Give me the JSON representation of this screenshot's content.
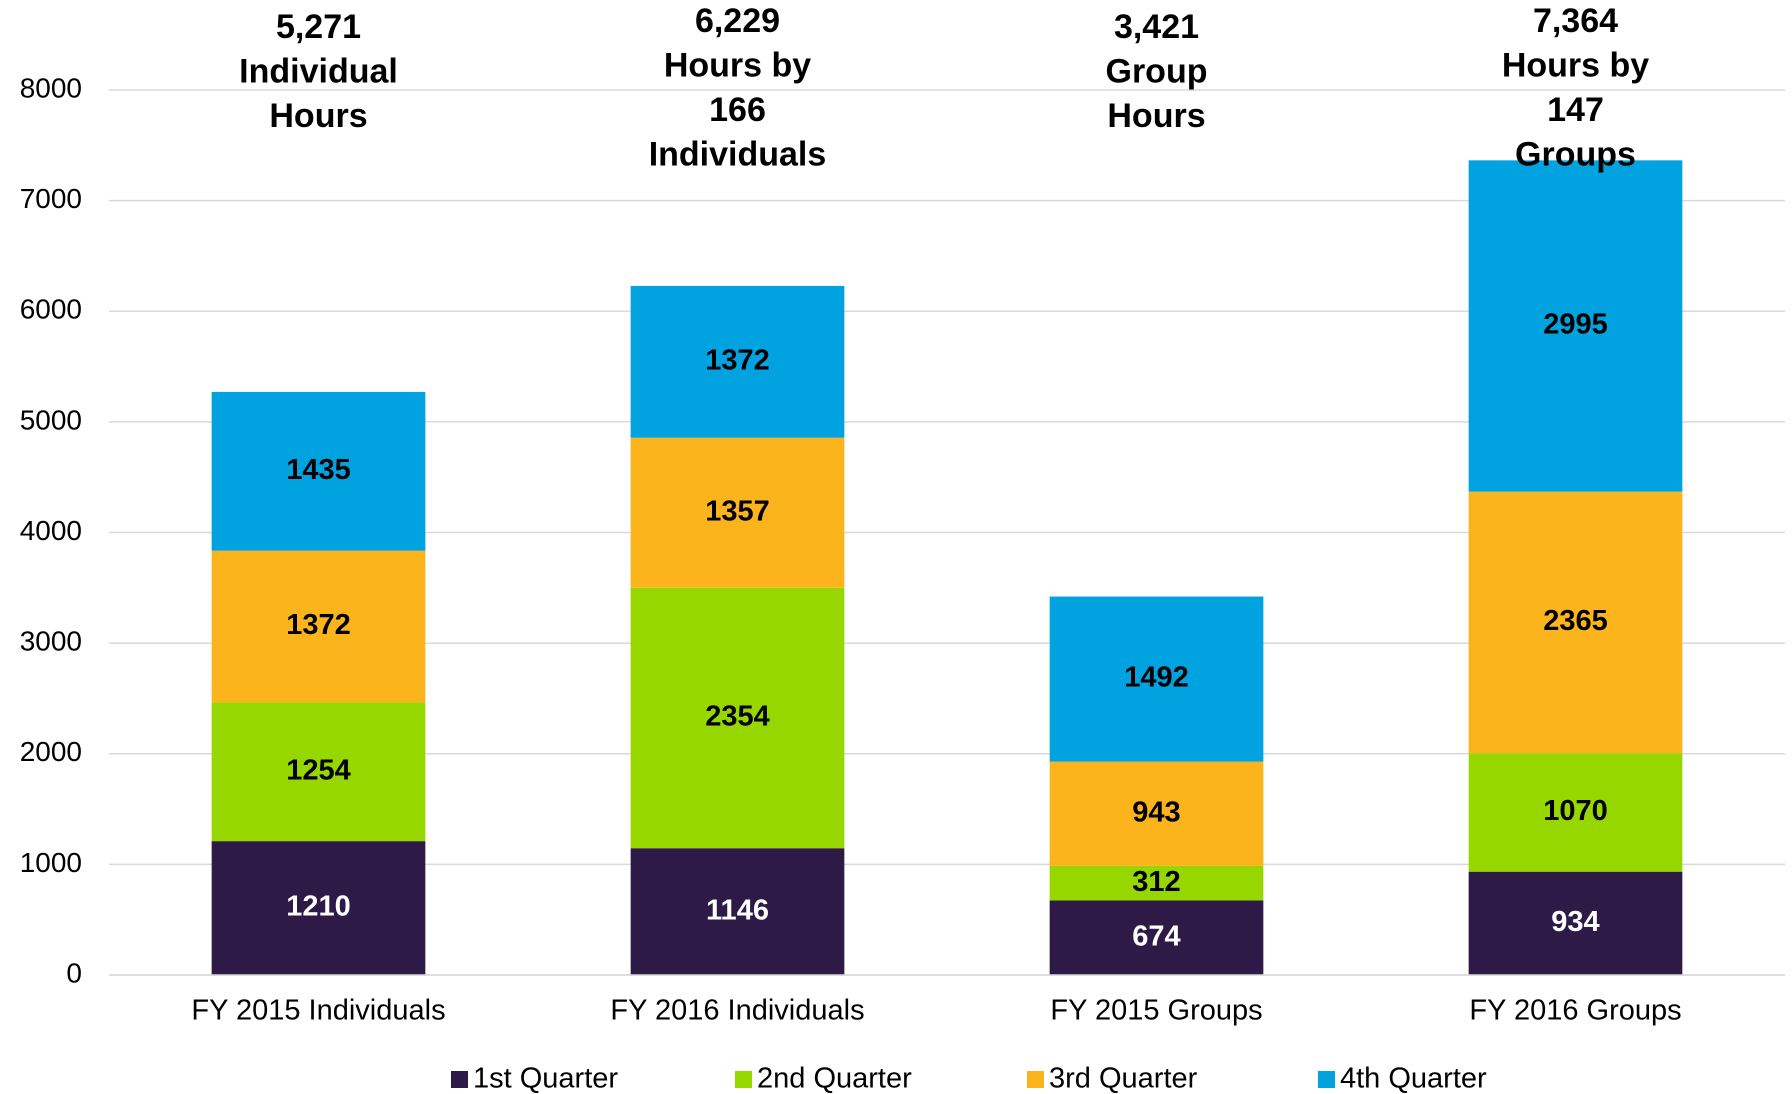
{
  "chart_data": {
    "type": "stacked_bar",
    "categories": [
      "FY 2015 Individuals",
      "FY 2016 Individuals",
      "FY 2015 Groups",
      "FY 2016 Groups"
    ],
    "series": [
      {
        "name": "1st Quarter",
        "color": "#2e1a47",
        "values": [
          1210,
          1146,
          674,
          934
        ]
      },
      {
        "name": "2nd Quarter",
        "color": "#97d700",
        "values": [
          1254,
          2354,
          312,
          1070
        ]
      },
      {
        "name": "3rd Quarter",
        "color": "#fbb41c",
        "values": [
          1372,
          1357,
          943,
          2365
        ]
      },
      {
        "name": "4th Quarter",
        "color": "#00a3e0",
        "values": [
          1435,
          1372,
          1492,
          2995
        ]
      }
    ],
    "annotations": [
      [
        "5,271",
        "Individual",
        "Hours"
      ],
      [
        "6,229",
        "Hours by",
        "166",
        "Individuals"
      ],
      [
        "3,421",
        "Group",
        "Hours"
      ],
      [
        "7,364",
        "Hours by",
        "147",
        "Groups"
      ]
    ],
    "ylim": [
      0,
      8000
    ],
    "yticks": [
      0,
      1000,
      2000,
      3000,
      4000,
      5000,
      6000,
      7000,
      8000
    ],
    "grid": true,
    "legend": "bottom"
  }
}
